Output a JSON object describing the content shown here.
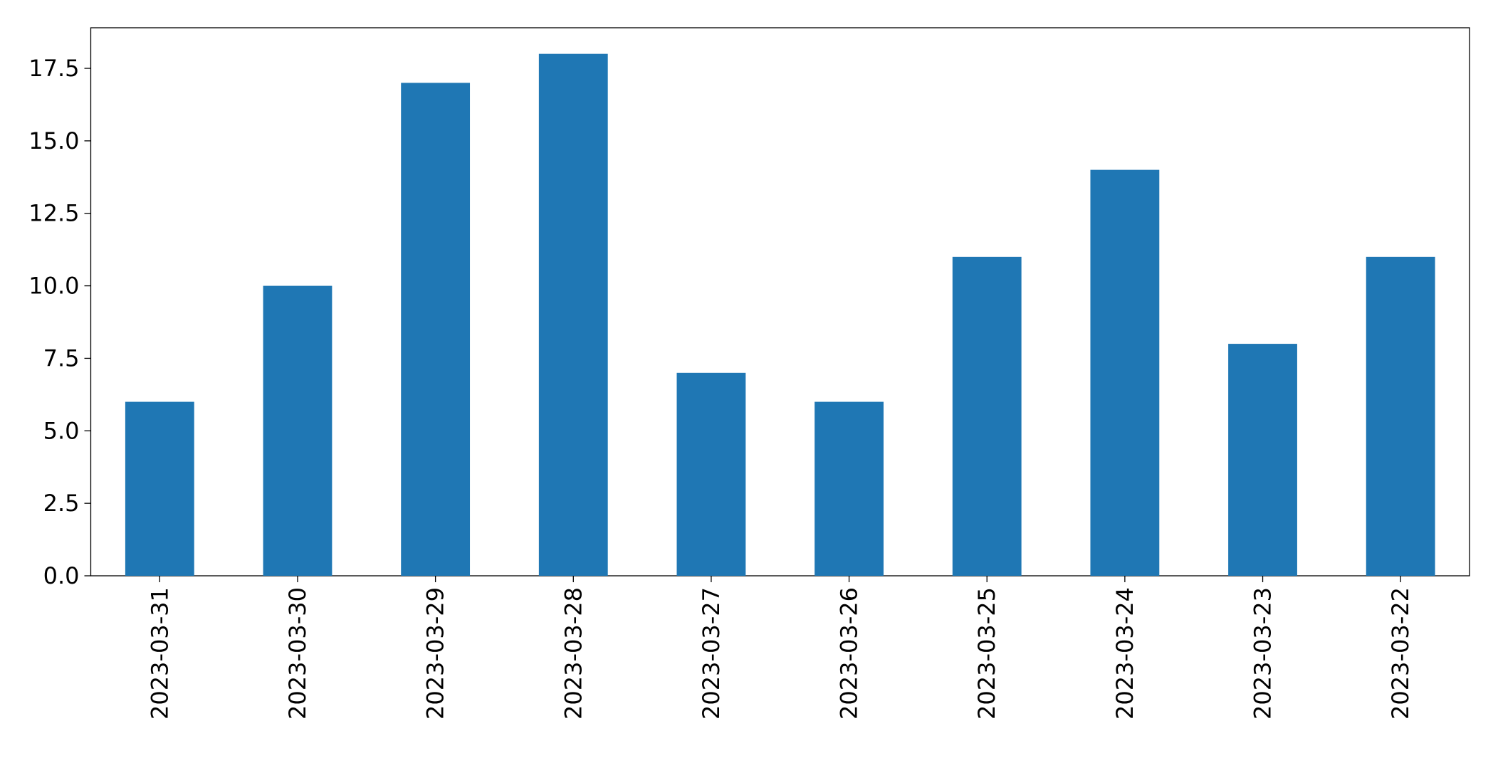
{
  "chart_data": {
    "type": "bar",
    "categories": [
      "2023-03-31",
      "2023-03-30",
      "2023-03-29",
      "2023-03-28",
      "2023-03-27",
      "2023-03-26",
      "2023-03-25",
      "2023-03-24",
      "2023-03-23",
      "2023-03-22"
    ],
    "values": [
      6,
      10,
      17,
      18,
      7,
      6,
      11,
      14,
      8,
      11
    ],
    "color": "#1f77b4",
    "ylim": [
      0,
      18.9
    ],
    "yticks": [
      {
        "value": 0,
        "label": "0.0"
      },
      2.5,
      {
        "value": 5,
        "label": "5.0"
      },
      7.5,
      {
        "value": 10,
        "label": "10.0"
      },
      12.5,
      {
        "value": 15,
        "label": "15.0"
      },
      17.5
    ],
    "grid": false
  }
}
